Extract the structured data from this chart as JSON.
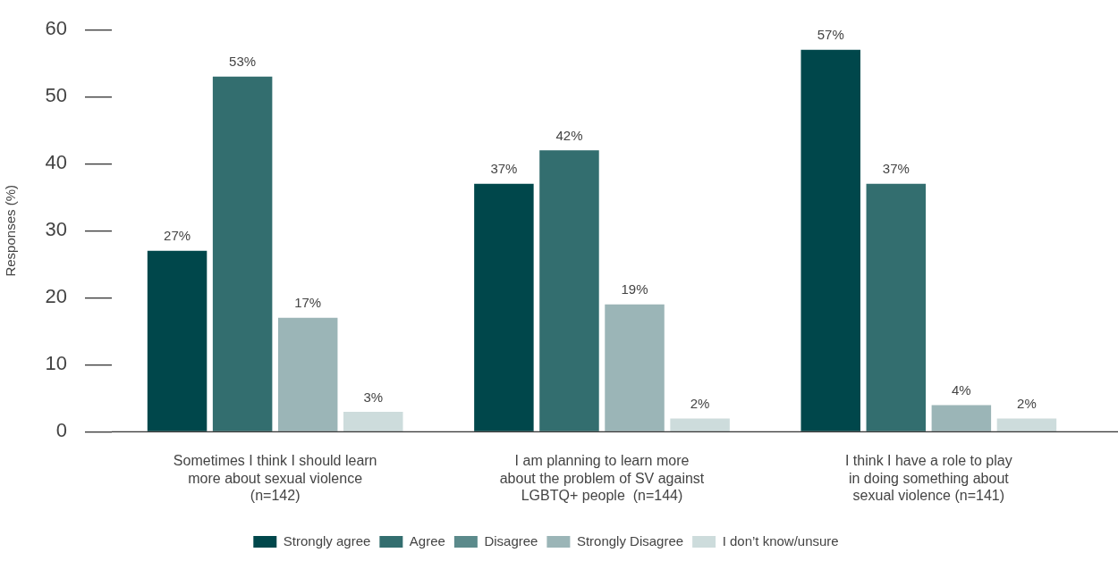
{
  "chart_data": {
    "type": "bar",
    "ylabel": "Responses (%)",
    "categories": [
      "Sometimes I think I should learn\nmore about sexual violence\n(n=142)",
      "I am planning to learn more\nabout the problem of SV against\nLGBTQ+ people  (n=144)",
      "I think I have a role to play\nin doing something about\nsexual violence (n=141)"
    ],
    "series": [
      {
        "name": "Strongly agree",
        "color": "#00474b",
        "values": [
          27,
          37,
          57
        ],
        "value_labels": [
          "27%",
          "37%",
          "57%"
        ]
      },
      {
        "name": "Agree",
        "color": "#336e6f",
        "values": [
          53,
          42,
          37
        ],
        "value_labels": [
          "53%",
          "42%",
          "37%"
        ]
      },
      {
        "name": "Disagree",
        "color": "#5b8a8b",
        "values": [
          null,
          null,
          null
        ]
      },
      {
        "name": "Strongly Disagree",
        "color": "#9bb5b7",
        "values": [
          17,
          19,
          4
        ],
        "value_labels": [
          "17%",
          "19%",
          "4%"
        ]
      },
      {
        "name": "I don’t know/unsure",
        "color": "#cddcdc",
        "values": [
          3,
          2,
          2
        ],
        "value_labels": [
          "3%",
          "2%",
          "2%"
        ]
      }
    ],
    "ylim": [
      0,
      60
    ],
    "yticks": [
      0,
      10,
      20,
      30,
      40,
      50,
      60
    ],
    "grid": false,
    "legend": "bottom"
  }
}
